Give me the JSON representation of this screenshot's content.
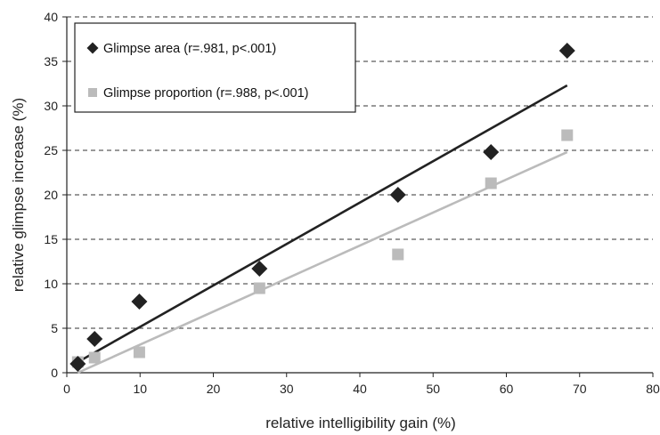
{
  "chart_data": {
    "type": "scatter",
    "title": "",
    "xlabel": "relative intelligibility gain (%)",
    "ylabel": "relative glimpse increase (%)",
    "xlim": [
      0,
      80
    ],
    "ylim": [
      0,
      40
    ],
    "x_ticks": [
      0,
      10,
      20,
      30,
      40,
      50,
      60,
      70,
      80
    ],
    "y_ticks": [
      0,
      5,
      10,
      15,
      20,
      25,
      30,
      35,
      40
    ],
    "grid": "horizontal dashed",
    "legend_position": "top-left",
    "series": [
      {
        "name": "Glimpse area (r=.981, p<.001)",
        "marker": "diamond",
        "color": "#222222",
        "points": [
          {
            "x": 1.5,
            "y": 1.0
          },
          {
            "x": 3.8,
            "y": 3.8
          },
          {
            "x": 9.9,
            "y": 8.0
          },
          {
            "x": 26.3,
            "y": 11.7
          },
          {
            "x": 45.2,
            "y": 20.0
          },
          {
            "x": 57.9,
            "y": 24.8
          },
          {
            "x": 68.3,
            "y": 36.2
          }
        ],
        "trendline": {
          "x0": 1.5,
          "y0": 1.2,
          "x1": 68.3,
          "y1": 32.3
        }
      },
      {
        "name": "Glimpse proportion (r=.988, p<.001)",
        "marker": "square",
        "color": "#bbbbbb",
        "points": [
          {
            "x": 1.5,
            "y": 1.2
          },
          {
            "x": 3.8,
            "y": 1.7
          },
          {
            "x": 9.9,
            "y": 2.3
          },
          {
            "x": 26.3,
            "y": 9.5
          },
          {
            "x": 45.2,
            "y": 13.3
          },
          {
            "x": 57.9,
            "y": 21.3
          },
          {
            "x": 68.3,
            "y": 26.7
          }
        ],
        "trendline": {
          "x0": 1.5,
          "y0": 0.0,
          "x1": 68.3,
          "y1": 24.8
        }
      }
    ]
  }
}
